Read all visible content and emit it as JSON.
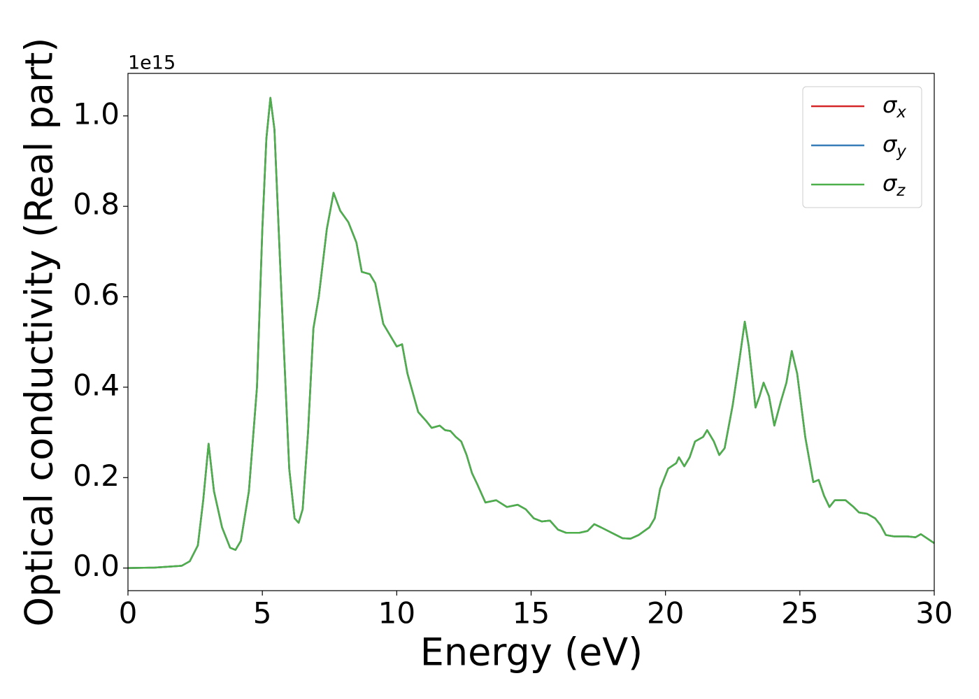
{
  "chart_data": {
    "type": "line",
    "x_label": "Energy (eV)",
    "y_label": "Optical conductivity (Real part)",
    "y_offset_text": "1e15",
    "xlim": [
      0,
      30
    ],
    "xticks": [
      0,
      5,
      10,
      15,
      20,
      25,
      30
    ],
    "ylim": [
      -0.05,
      1.094
    ],
    "yticks": [
      {
        "value": 0,
        "label": "0.0"
      },
      {
        "value": 0.2,
        "label": "0.2"
      },
      {
        "value": 0.4,
        "label": "0.4"
      },
      {
        "value": 0.6,
        "label": "0.6"
      },
      {
        "value": 0.8,
        "label": "0.8"
      },
      {
        "value": 1.0,
        "label": "1.0"
      }
    ],
    "legend": "upper right",
    "x": [
      0,
      1,
      2,
      2.3,
      2.6,
      2.8,
      3.0,
      3.2,
      3.5,
      3.8,
      4.0,
      4.2,
      4.5,
      4.8,
      5.0,
      5.15,
      5.3,
      5.45,
      5.7,
      6.0,
      6.2,
      6.35,
      6.5,
      6.7,
      6.9,
      7.1,
      7.4,
      7.65,
      7.9,
      8.2,
      8.5,
      8.7,
      9.0,
      9.2,
      9.5,
      9.8,
      10.0,
      10.2,
      10.4,
      10.8,
      11.1,
      11.3,
      11.6,
      11.8,
      12.0,
      12.2,
      12.4,
      12.6,
      12.8,
      13.0,
      13.3,
      13.7,
      14.1,
      14.5,
      14.8,
      15.1,
      15.4,
      15.7,
      16.0,
      16.3,
      16.8,
      17.1,
      17.35,
      17.6,
      18.0,
      18.4,
      18.7,
      19.0,
      19.4,
      19.6,
      19.8,
      20.1,
      20.4,
      20.5,
      20.7,
      20.9,
      21.1,
      21.4,
      21.55,
      21.8,
      22.0,
      22.2,
      22.5,
      22.75,
      22.95,
      23.1,
      23.35,
      23.5,
      23.65,
      23.85,
      24.05,
      24.3,
      24.5,
      24.7,
      24.9,
      25.2,
      25.5,
      25.7,
      25.9,
      26.1,
      26.3,
      26.5,
      26.7,
      27.0,
      27.2,
      27.5,
      27.8,
      28.0,
      28.2,
      28.5,
      29.0,
      29.3,
      29.5,
      30.0
    ],
    "series": [
      {
        "name": "σx",
        "color": "#d62728",
        "values": [
          0,
          0.001,
          0.005,
          0.015,
          0.05,
          0.15,
          0.275,
          0.17,
          0.09,
          0.045,
          0.04,
          0.06,
          0.17,
          0.4,
          0.75,
          0.95,
          1.04,
          0.97,
          0.62,
          0.22,
          0.11,
          0.1,
          0.13,
          0.3,
          0.53,
          0.6,
          0.75,
          0.83,
          0.79,
          0.765,
          0.72,
          0.655,
          0.65,
          0.63,
          0.54,
          0.51,
          0.49,
          0.495,
          0.43,
          0.345,
          0.325,
          0.31,
          0.315,
          0.305,
          0.303,
          0.29,
          0.28,
          0.25,
          0.21,
          0.185,
          0.145,
          0.15,
          0.135,
          0.14,
          0.13,
          0.11,
          0.103,
          0.105,
          0.085,
          0.078,
          0.078,
          0.082,
          0.097,
          0.09,
          0.078,
          0.066,
          0.065,
          0.073,
          0.09,
          0.11,
          0.175,
          0.22,
          0.232,
          0.245,
          0.225,
          0.245,
          0.28,
          0.29,
          0.305,
          0.28,
          0.25,
          0.265,
          0.36,
          0.46,
          0.545,
          0.49,
          0.355,
          0.38,
          0.41,
          0.38,
          0.315,
          0.37,
          0.41,
          0.48,
          0.43,
          0.29,
          0.19,
          0.195,
          0.16,
          0.135,
          0.15,
          0.15,
          0.15,
          0.135,
          0.123,
          0.12,
          0.11,
          0.095,
          0.073,
          0.07,
          0.07,
          0.068,
          0.075,
          0.055
        ]
      },
      {
        "name": "σy",
        "color": "#377eb8",
        "values": [
          0,
          0.001,
          0.005,
          0.015,
          0.05,
          0.15,
          0.275,
          0.17,
          0.09,
          0.045,
          0.04,
          0.06,
          0.17,
          0.4,
          0.75,
          0.95,
          1.04,
          0.97,
          0.62,
          0.22,
          0.11,
          0.1,
          0.13,
          0.3,
          0.53,
          0.6,
          0.75,
          0.83,
          0.79,
          0.765,
          0.72,
          0.655,
          0.65,
          0.63,
          0.54,
          0.51,
          0.49,
          0.495,
          0.43,
          0.345,
          0.325,
          0.31,
          0.315,
          0.305,
          0.303,
          0.29,
          0.28,
          0.25,
          0.21,
          0.185,
          0.145,
          0.15,
          0.135,
          0.14,
          0.13,
          0.11,
          0.103,
          0.105,
          0.085,
          0.078,
          0.078,
          0.082,
          0.097,
          0.09,
          0.078,
          0.066,
          0.065,
          0.073,
          0.09,
          0.11,
          0.175,
          0.22,
          0.232,
          0.245,
          0.225,
          0.245,
          0.28,
          0.29,
          0.305,
          0.28,
          0.25,
          0.265,
          0.36,
          0.46,
          0.545,
          0.49,
          0.355,
          0.38,
          0.41,
          0.38,
          0.315,
          0.37,
          0.41,
          0.48,
          0.43,
          0.29,
          0.19,
          0.195,
          0.16,
          0.135,
          0.15,
          0.15,
          0.15,
          0.135,
          0.123,
          0.12,
          0.11,
          0.095,
          0.073,
          0.07,
          0.07,
          0.068,
          0.075,
          0.055
        ]
      },
      {
        "name": "σz",
        "color": "#4daf4a",
        "values": [
          0,
          0.001,
          0.005,
          0.015,
          0.05,
          0.15,
          0.275,
          0.17,
          0.09,
          0.045,
          0.04,
          0.06,
          0.17,
          0.4,
          0.75,
          0.95,
          1.04,
          0.97,
          0.62,
          0.22,
          0.11,
          0.1,
          0.13,
          0.3,
          0.53,
          0.6,
          0.75,
          0.83,
          0.79,
          0.765,
          0.72,
          0.655,
          0.65,
          0.63,
          0.54,
          0.51,
          0.49,
          0.495,
          0.43,
          0.345,
          0.325,
          0.31,
          0.315,
          0.305,
          0.303,
          0.29,
          0.28,
          0.25,
          0.21,
          0.185,
          0.145,
          0.15,
          0.135,
          0.14,
          0.13,
          0.11,
          0.103,
          0.105,
          0.085,
          0.078,
          0.078,
          0.082,
          0.097,
          0.09,
          0.078,
          0.066,
          0.065,
          0.073,
          0.09,
          0.11,
          0.175,
          0.22,
          0.232,
          0.245,
          0.225,
          0.245,
          0.28,
          0.29,
          0.305,
          0.28,
          0.25,
          0.265,
          0.36,
          0.46,
          0.545,
          0.49,
          0.355,
          0.38,
          0.41,
          0.38,
          0.315,
          0.37,
          0.41,
          0.48,
          0.43,
          0.29,
          0.19,
          0.195,
          0.16,
          0.135,
          0.15,
          0.15,
          0.15,
          0.135,
          0.123,
          0.12,
          0.11,
          0.095,
          0.073,
          0.07,
          0.07,
          0.068,
          0.075,
          0.055
        ]
      }
    ]
  }
}
